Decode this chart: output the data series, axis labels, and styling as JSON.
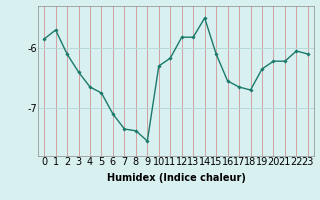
{
  "x": [
    0,
    1,
    2,
    3,
    4,
    5,
    6,
    7,
    8,
    9,
    10,
    11,
    12,
    13,
    14,
    15,
    16,
    17,
    18,
    19,
    20,
    21,
    22,
    23
  ],
  "y": [
    -5.85,
    -5.7,
    -6.1,
    -6.4,
    -6.65,
    -6.75,
    -7.1,
    -7.35,
    -7.38,
    -7.55,
    -6.3,
    -6.17,
    -5.82,
    -5.82,
    -5.5,
    -6.1,
    -6.55,
    -6.65,
    -6.7,
    -6.35,
    -6.22,
    -6.22,
    -6.05,
    -6.1
  ],
  "line_color": "#1a7a6a",
  "marker": "D",
  "marker_size": 1.8,
  "bg_color": "#d9f0f0",
  "grid_color": "#b8d8d8",
  "xlabel": "Humidex (Indice chaleur)",
  "yticks": [
    -7,
    -6
  ],
  "ylim": [
    -7.8,
    -5.3
  ],
  "xlim": [
    -0.5,
    23.5
  ],
  "xlabel_fontsize": 7,
  "tick_fontsize": 7,
  "line_width": 1.0
}
